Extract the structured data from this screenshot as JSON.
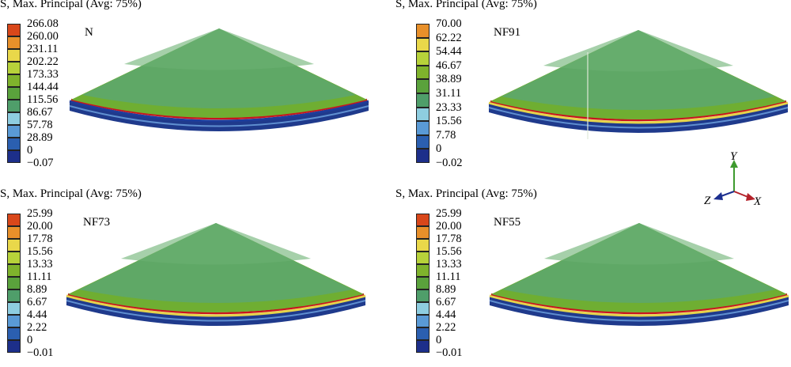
{
  "panels": [
    {
      "title": "S, Max. Principal (Avg: 75%)",
      "model_name": "N",
      "legend_values": [
        "266.08",
        "260.00",
        "231.11",
        "202.22",
        "173.33",
        "144.44",
        "115.56",
        "86.67",
        "57.78",
        "28.89",
        "0",
        "−0.07"
      ]
    },
    {
      "title": "S, Max. Principal (Avg: 75%)",
      "model_name": "NF91",
      "legend_values": [
        "70.00",
        "62.22",
        "54.44",
        "46.67",
        "38.89",
        "31.11",
        "23.33",
        "15.56",
        "7.78",
        "0",
        "−0.02"
      ]
    },
    {
      "title": "S, Max. Principal (Avg: 75%)",
      "model_name": "NF73",
      "legend_values": [
        "25.99",
        "20.00",
        "17.78",
        "15.56",
        "13.33",
        "11.11",
        "8.89",
        "6.67",
        "4.44",
        "2.22",
        "0",
        "−0.01"
      ]
    },
    {
      "title": "S, Max. Principal (Avg: 75%)",
      "model_name": "NF55",
      "legend_values": [
        "25.99",
        "20.00",
        "17.78",
        "15.56",
        "13.33",
        "11.11",
        "8.89",
        "6.67",
        "4.44",
        "2.22",
        "0",
        "−0.01"
      ]
    }
  ],
  "legend_colors": [
    "#c8141e",
    "#d9471a",
    "#e8902a",
    "#e9d84a",
    "#b7d23a",
    "#7fb32c",
    "#5aa23c",
    "#4f9e6a",
    "#8ecde0",
    "#5a9ad6",
    "#2b5fb0",
    "#1d2f8a"
  ],
  "triad": {
    "y_label": "Y",
    "z_label": "Z",
    "x_label": "X"
  },
  "colors": {
    "y_axis": "#3e9a2e",
    "x_axis": "#b4222a",
    "z_axis": "#1c2f8f",
    "top_surface": "#5fa866",
    "rim_band": "#6fae32"
  }
}
